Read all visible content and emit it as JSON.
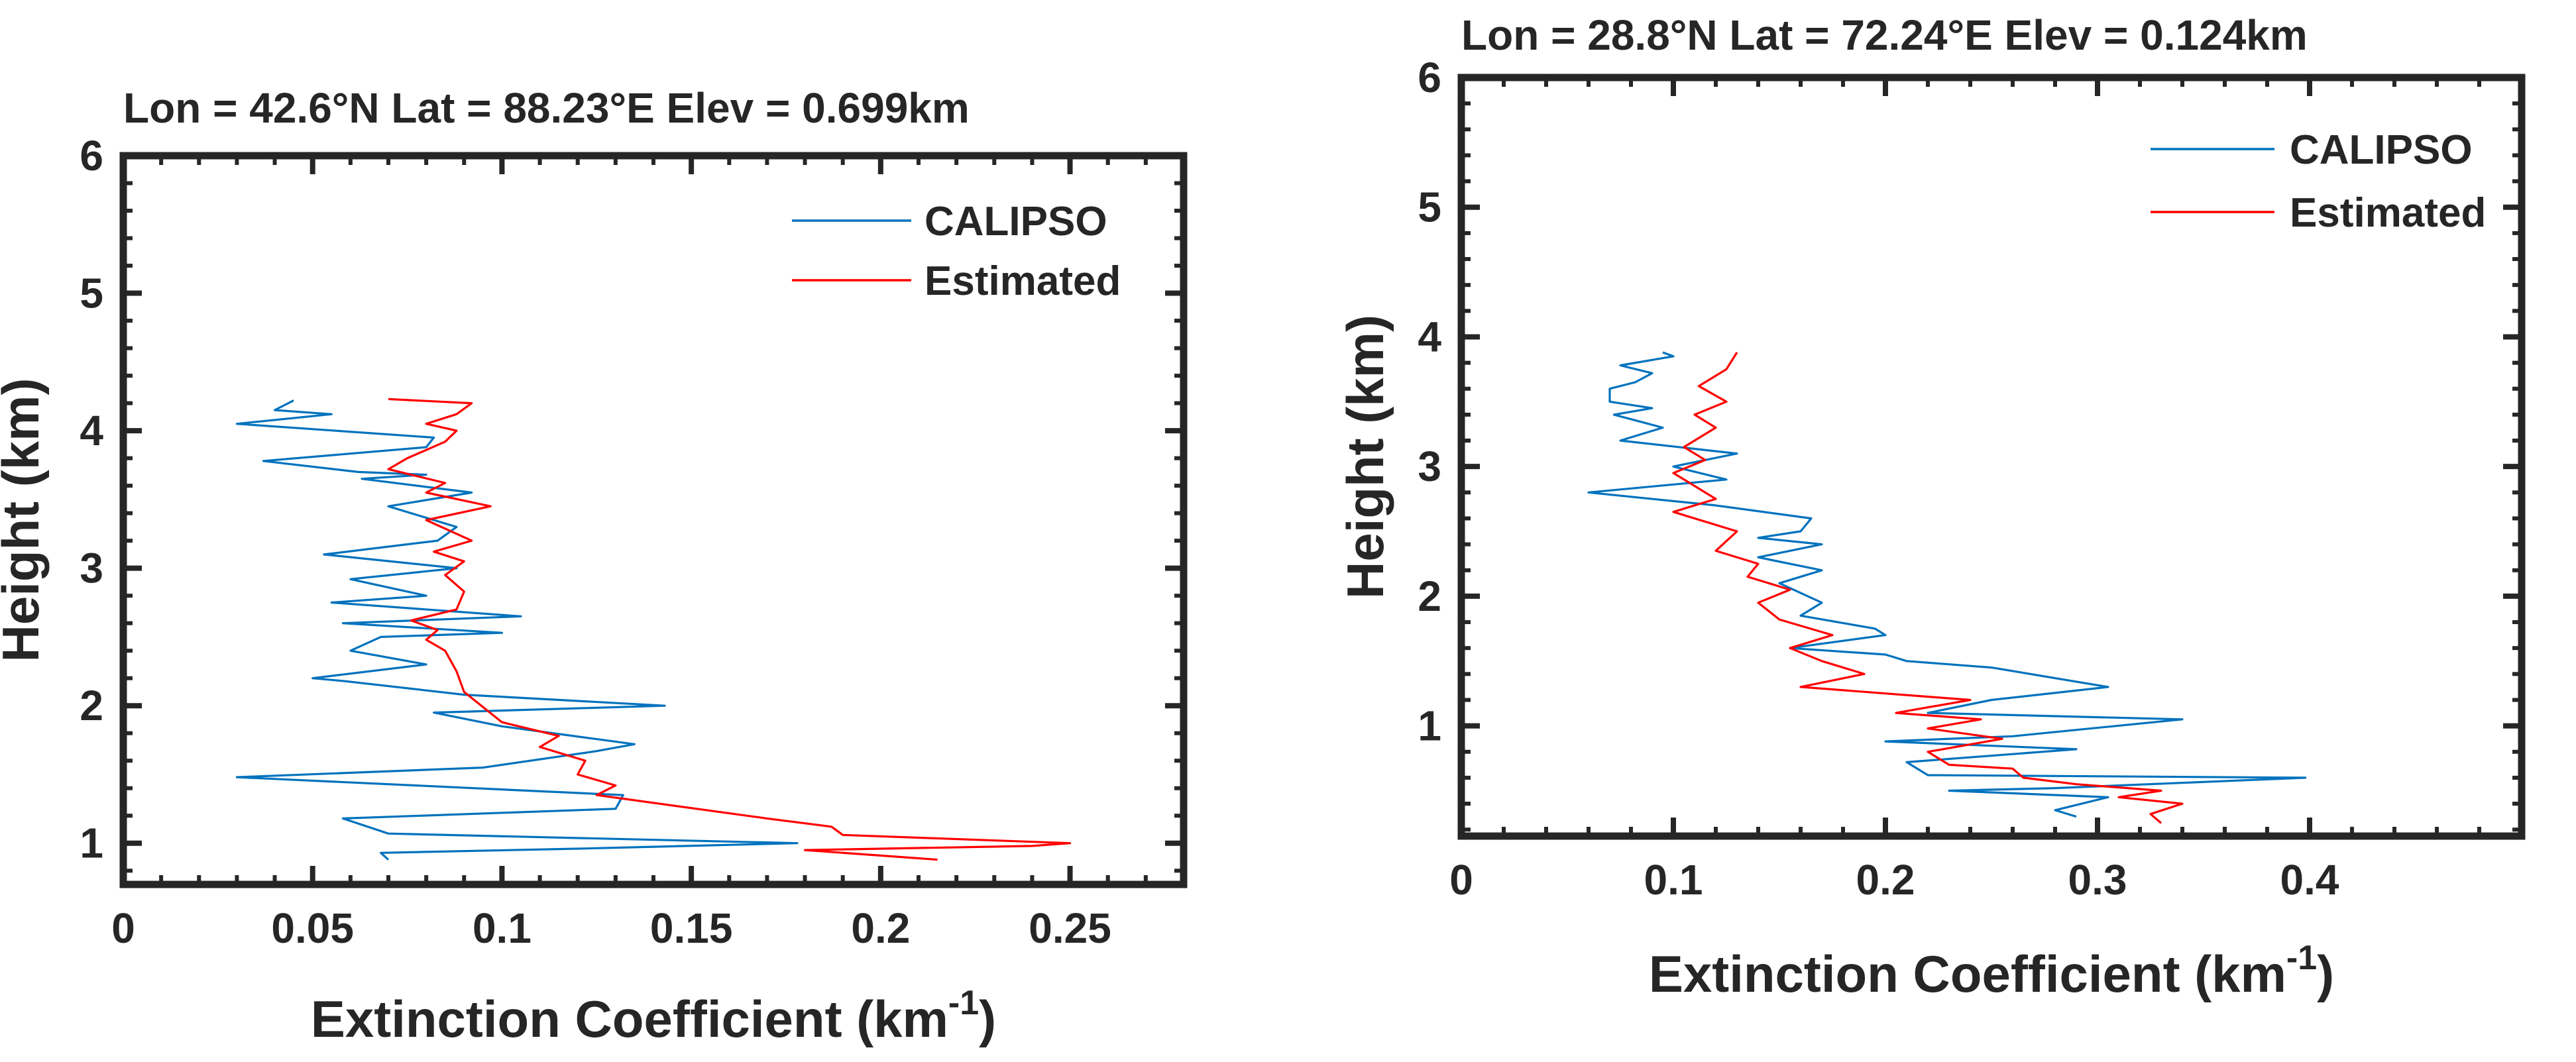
{
  "chart_data": [
    {
      "type": "line",
      "title": "Lon = 42.6°N Lat = 88.23°E Elev = 0.699km",
      "xlabel": "Extinction Coefficient (km",
      "xlabel_sup": "-1",
      "xlabel_end": ")",
      "ylabel": "Height (km)",
      "xlim": [
        0,
        0.28
      ],
      "ylim": [
        0.7,
        6
      ],
      "xticks": [
        0,
        0.05,
        0.1,
        0.15,
        0.2,
        0.25
      ],
      "xtick_labels": [
        "0",
        "0.05",
        "0.1",
        "0.15",
        "0.2",
        "0.25"
      ],
      "yticks": [
        1,
        2,
        3,
        4,
        5,
        6
      ],
      "ytick_labels": [
        "1",
        "2",
        "3",
        "4",
        "5",
        "6"
      ],
      "legend": "top-right",
      "series": [
        {
          "name": "CALIPSO",
          "color": "#0072BD",
          "points": [
            [
              0.07,
              0.88
            ],
            [
              0.068,
              0.93
            ],
            [
              0.12,
              0.96
            ],
            [
              0.178,
              1.0
            ],
            [
              0.07,
              1.07
            ],
            [
              0.058,
              1.18
            ],
            [
              0.13,
              1.25
            ],
            [
              0.132,
              1.35
            ],
            [
              0.03,
              1.48
            ],
            [
              0.095,
              1.55
            ],
            [
              0.125,
              1.67
            ],
            [
              0.135,
              1.72
            ],
            [
              0.1,
              1.85
            ],
            [
              0.082,
              1.95
            ],
            [
              0.143,
              2.0
            ],
            [
              0.09,
              2.08
            ],
            [
              0.058,
              2.18
            ],
            [
              0.05,
              2.2
            ],
            [
              0.08,
              2.3
            ],
            [
              0.06,
              2.4
            ],
            [
              0.068,
              2.5
            ],
            [
              0.1,
              2.53
            ],
            [
              0.058,
              2.6
            ],
            [
              0.105,
              2.65
            ],
            [
              0.055,
              2.75
            ],
            [
              0.08,
              2.8
            ],
            [
              0.06,
              2.92
            ],
            [
              0.088,
              3.0
            ],
            [
              0.053,
              3.1
            ],
            [
              0.083,
              3.2
            ],
            [
              0.088,
              3.3
            ],
            [
              0.07,
              3.45
            ],
            [
              0.092,
              3.55
            ],
            [
              0.063,
              3.65
            ],
            [
              0.08,
              3.68
            ],
            [
              0.062,
              3.7
            ],
            [
              0.037,
              3.78
            ],
            [
              0.08,
              3.88
            ],
            [
              0.082,
              3.95
            ],
            [
              0.03,
              4.05
            ],
            [
              0.055,
              4.12
            ],
            [
              0.04,
              4.15
            ],
            [
              0.045,
              4.22
            ]
          ]
        },
        {
          "name": "Estimated",
          "color": "#FF0000",
          "points": [
            [
              0.215,
              0.88
            ],
            [
              0.18,
              0.95
            ],
            [
              0.24,
              0.98
            ],
            [
              0.25,
              1.0
            ],
            [
              0.19,
              1.06
            ],
            [
              0.187,
              1.12
            ],
            [
              0.17,
              1.18
            ],
            [
              0.125,
              1.35
            ],
            [
              0.13,
              1.42
            ],
            [
              0.12,
              1.5
            ],
            [
              0.122,
              1.6
            ],
            [
              0.11,
              1.7
            ],
            [
              0.115,
              1.78
            ],
            [
              0.1,
              1.88
            ],
            [
              0.09,
              2.1
            ],
            [
              0.088,
              2.25
            ],
            [
              0.085,
              2.4
            ],
            [
              0.08,
              2.48
            ],
            [
              0.083,
              2.55
            ],
            [
              0.076,
              2.62
            ],
            [
              0.088,
              2.7
            ],
            [
              0.09,
              2.83
            ],
            [
              0.085,
              2.95
            ],
            [
              0.09,
              3.05
            ],
            [
              0.082,
              3.12
            ],
            [
              0.092,
              3.2
            ],
            [
              0.08,
              3.35
            ],
            [
              0.097,
              3.45
            ],
            [
              0.08,
              3.55
            ],
            [
              0.085,
              3.62
            ],
            [
              0.07,
              3.72
            ],
            [
              0.075,
              3.8
            ],
            [
              0.085,
              3.92
            ],
            [
              0.088,
              4.0
            ],
            [
              0.08,
              4.05
            ],
            [
              0.088,
              4.12
            ],
            [
              0.092,
              4.2
            ],
            [
              0.07,
              4.23
            ]
          ]
        }
      ]
    },
    {
      "type": "line",
      "title": "Lon = 28.8°N Lat = 72.24°E Elev = 0.124km",
      "xlabel": "Extinction Coefficient (km",
      "xlabel_sup": "-1",
      "xlabel_end": ")",
      "ylabel": "Height (km)",
      "xlim": [
        0,
        0.5
      ],
      "ylim": [
        0.15,
        6
      ],
      "xticks": [
        0,
        0.1,
        0.2,
        0.3,
        0.4
      ],
      "xtick_labels": [
        "0",
        "0.1",
        "0.2",
        "0.3",
        "0.4"
      ],
      "yticks": [
        1,
        2,
        3,
        4,
        5,
        6
      ],
      "ytick_labels": [
        "1",
        "2",
        "3",
        "4",
        "5",
        "6"
      ],
      "legend": "top-right",
      "series": [
        {
          "name": "CALIPSO",
          "color": "#0072BD",
          "points": [
            [
              0.29,
              0.3
            ],
            [
              0.28,
              0.35
            ],
            [
              0.305,
              0.45
            ],
            [
              0.23,
              0.5
            ],
            [
              0.28,
              0.52
            ],
            [
              0.398,
              0.6
            ],
            [
              0.22,
              0.62
            ],
            [
              0.21,
              0.72
            ],
            [
              0.29,
              0.82
            ],
            [
              0.2,
              0.88
            ],
            [
              0.26,
              0.92
            ],
            [
              0.34,
              1.05
            ],
            [
              0.22,
              1.1
            ],
            [
              0.25,
              1.2
            ],
            [
              0.305,
              1.3
            ],
            [
              0.25,
              1.45
            ],
            [
              0.21,
              1.5
            ],
            [
              0.2,
              1.55
            ],
            [
              0.155,
              1.6
            ],
            [
              0.2,
              1.7
            ],
            [
              0.195,
              1.75
            ],
            [
              0.16,
              1.85
            ],
            [
              0.17,
              1.95
            ],
            [
              0.15,
              2.1
            ],
            [
              0.17,
              2.2
            ],
            [
              0.14,
              2.3
            ],
            [
              0.17,
              2.4
            ],
            [
              0.14,
              2.45
            ],
            [
              0.16,
              2.5
            ],
            [
              0.165,
              2.6
            ],
            [
              0.12,
              2.7
            ],
            [
              0.06,
              2.8
            ],
            [
              0.125,
              2.9
            ],
            [
              0.1,
              3.0
            ],
            [
              0.13,
              3.1
            ],
            [
              0.075,
              3.2
            ],
            [
              0.095,
              3.3
            ],
            [
              0.072,
              3.4
            ],
            [
              0.09,
              3.45
            ],
            [
              0.07,
              3.5
            ],
            [
              0.07,
              3.6
            ],
            [
              0.082,
              3.65
            ],
            [
              0.09,
              3.72
            ],
            [
              0.075,
              3.78
            ],
            [
              0.1,
              3.85
            ],
            [
              0.095,
              3.88
            ]
          ]
        },
        {
          "name": "Estimated",
          "color": "#FF0000",
          "points": [
            [
              0.33,
              0.25
            ],
            [
              0.325,
              0.32
            ],
            [
              0.34,
              0.4
            ],
            [
              0.31,
              0.45
            ],
            [
              0.33,
              0.5
            ],
            [
              0.29,
              0.55
            ],
            [
              0.265,
              0.6
            ],
            [
              0.26,
              0.67
            ],
            [
              0.23,
              0.7
            ],
            [
              0.22,
              0.8
            ],
            [
              0.255,
              0.9
            ],
            [
              0.22,
              0.98
            ],
            [
              0.245,
              1.05
            ],
            [
              0.205,
              1.1
            ],
            [
              0.24,
              1.2
            ],
            [
              0.16,
              1.3
            ],
            [
              0.19,
              1.4
            ],
            [
              0.17,
              1.5
            ],
            [
              0.155,
              1.6
            ],
            [
              0.175,
              1.7
            ],
            [
              0.15,
              1.82
            ],
            [
              0.14,
              1.95
            ],
            [
              0.155,
              2.05
            ],
            [
              0.135,
              2.15
            ],
            [
              0.14,
              2.25
            ],
            [
              0.12,
              2.35
            ],
            [
              0.13,
              2.5
            ],
            [
              0.1,
              2.65
            ],
            [
              0.12,
              2.75
            ],
            [
              0.11,
              2.85
            ],
            [
              0.1,
              2.95
            ],
            [
              0.115,
              3.05
            ],
            [
              0.105,
              3.15
            ],
            [
              0.12,
              3.3
            ],
            [
              0.11,
              3.4
            ],
            [
              0.125,
              3.5
            ],
            [
              0.112,
              3.62
            ],
            [
              0.125,
              3.75
            ],
            [
              0.13,
              3.88
            ]
          ]
        }
      ]
    }
  ]
}
